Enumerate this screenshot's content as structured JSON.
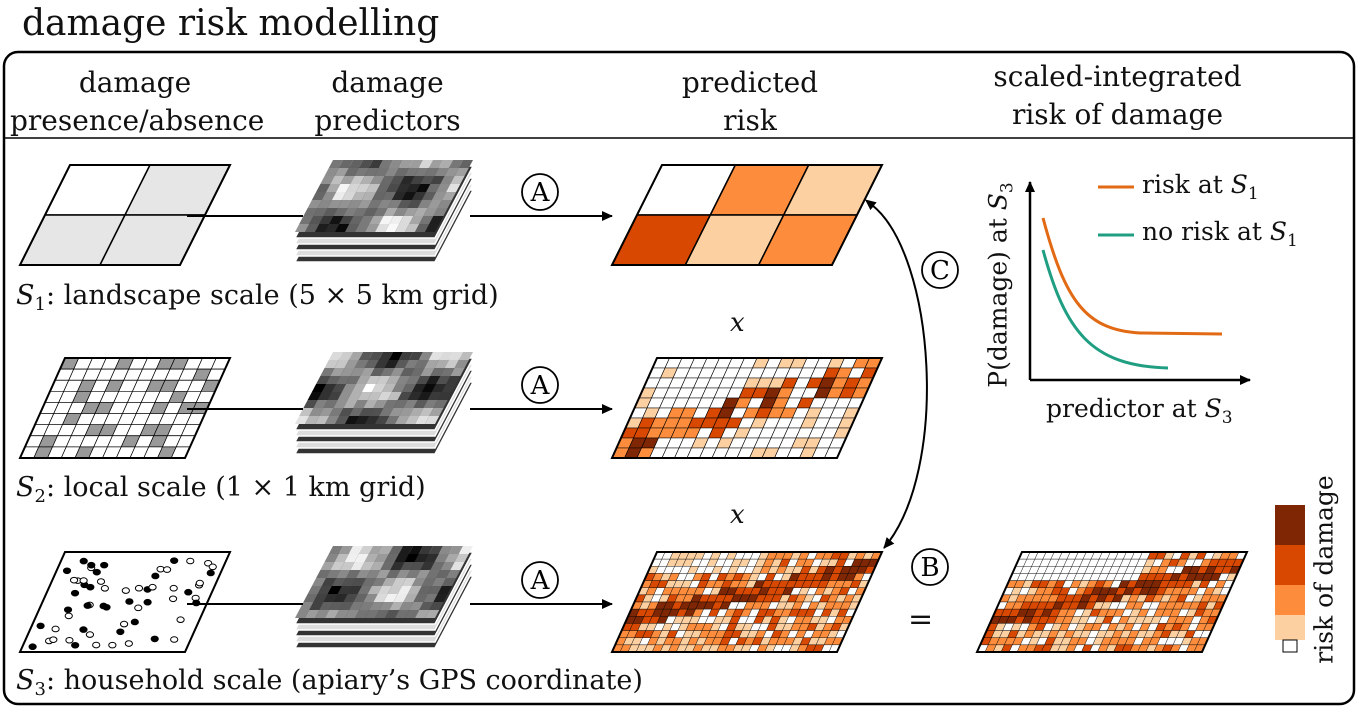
{
  "title": "damage risk modelling",
  "headers": {
    "col1_line1": "damage",
    "col1_line2": "presence/absence",
    "col2_line1": "damage",
    "col2_line2": "predictors",
    "col3_line1": "predicted",
    "col3_line2": "risk",
    "col4_line1": "scaled-integrated",
    "col4_line2": "risk of damage"
  },
  "scales": [
    {
      "symbol": "S",
      "index": "1",
      "text": ": landscape scale (5 × 5 km grid)"
    },
    {
      "symbol": "S",
      "index": "2",
      "text": ": local scale (1 × 1 km grid)"
    },
    {
      "symbol": "S",
      "index": "3",
      "text": ": household scale (apiary’s GPS coordinate)"
    }
  ],
  "steps": {
    "A": "A",
    "B": "B",
    "C": "C"
  },
  "multiply": "x",
  "equals": "=",
  "colors": {
    "risk_dark": "#7f2704",
    "risk_high": "#d94801",
    "risk_mid": "#fd8d3c",
    "risk_low": "#fdd0a2",
    "risk_none": "#ffffff",
    "presence": "#e6e6e6",
    "presence_local": "#999999",
    "curve_risk": "#e26a14",
    "curve_norisk": "#1f9e82"
  },
  "legend": {
    "risk_prefix": "risk at ",
    "norisk_prefix": "no risk at ",
    "symbol": "S",
    "index": "1"
  },
  "axes": {
    "x_prefix": "predictor at ",
    "y_prefix": "P(damage) at ",
    "symbol": "S",
    "index": "3"
  },
  "colorbar_label": "risk of damage"
}
